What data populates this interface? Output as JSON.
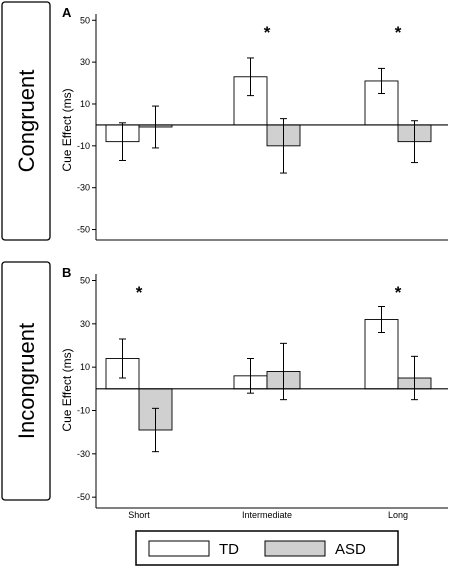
{
  "chart_data": [
    {
      "type": "bar",
      "panel": "A",
      "side_label": "Congruent",
      "ylabel": "Cue Effect (ms)",
      "ylim": [
        -55,
        53
      ],
      "yticks": [
        50,
        30,
        10,
        -10,
        -30,
        -50
      ],
      "categories": [
        "Short",
        "Intermediate",
        "Long"
      ],
      "series": [
        {
          "name": "TD",
          "values": [
            -8,
            23,
            21
          ],
          "errors": [
            9,
            9,
            6
          ]
        },
        {
          "name": "ASD",
          "values": [
            -1,
            -10,
            -8
          ],
          "errors": [
            10,
            13,
            10
          ]
        }
      ],
      "significance": [
        "",
        "*",
        "*"
      ],
      "zero_line": true
    },
    {
      "type": "bar",
      "panel": "B",
      "side_label": "Incongruent",
      "ylabel": "Cue Effect (ms)",
      "ylim": [
        -55,
        53
      ],
      "yticks": [
        50,
        30,
        10,
        -10,
        -30,
        -50
      ],
      "categories": [
        "Short",
        "Intermediate",
        "Long"
      ],
      "series": [
        {
          "name": "TD",
          "values": [
            14,
            6,
            32
          ],
          "errors": [
            9,
            8,
            6
          ]
        },
        {
          "name": "ASD",
          "values": [
            -19,
            8,
            5
          ],
          "errors": [
            10,
            13,
            10
          ]
        }
      ],
      "significance": [
        "*",
        "",
        "*"
      ],
      "zero_line": true
    }
  ],
  "legend": {
    "items": [
      {
        "label": "TD",
        "color": "#ffffff"
      },
      {
        "label": "ASD",
        "color": "#d0d0d0"
      }
    ]
  },
  "colors": {
    "td": "#ffffff",
    "asd": "#d0d0d0",
    "stroke": "#000000"
  }
}
